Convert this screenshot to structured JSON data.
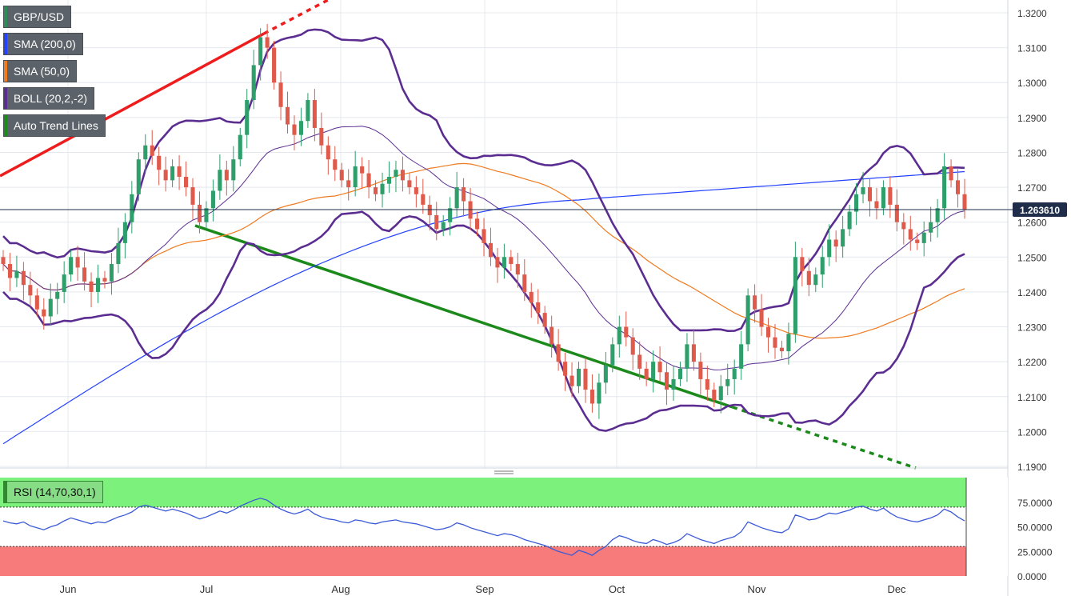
{
  "legends": [
    {
      "label": "GBP/USD",
      "color": "#2e8b57"
    },
    {
      "label": "SMA (200,0)",
      "color": "#2441ff"
    },
    {
      "label": "SMA (50,0)",
      "color": "#f07a1f"
    },
    {
      "label": "BOLL (20,2,-2)",
      "color": "#5c2d91"
    },
    {
      "label": "Auto Trend Lines",
      "color": "#1b8a1b"
    }
  ],
  "rsi_legend": "RSI (14,70,30,1)",
  "price_tag": "1.263610",
  "colors": {
    "bull": "#2e9e6a",
    "bear": "#e05a4b",
    "sma200": "#2441ff",
    "sma50": "#f07a1f",
    "boll": "#5c2d91",
    "trend_up": "#ee1c1c",
    "trend_down": "#1b8a1b",
    "rsi_line": "#3b5bd6",
    "rsi_over": "#7cf27c",
    "rsi_under": "#f77b7b"
  },
  "chart_data": {
    "type": "candlestick",
    "title": "GBP/USD",
    "x_labels": [
      "Jun",
      "Jul",
      "Aug",
      "Sep",
      "Oct",
      "Nov",
      "Dec"
    ],
    "y_ticks": [
      "1.3200",
      "1.3100",
      "1.3000",
      "1.2900",
      "1.2800",
      "1.2700",
      "1.2600",
      "1.2500",
      "1.2400",
      "1.2300",
      "1.2200",
      "1.2100",
      "1.2000",
      "1.1900"
    ],
    "ylim": [
      1.19,
      1.32
    ],
    "last_price": 1.26361,
    "candles_close": [
      1.248,
      1.244,
      1.246,
      1.242,
      1.239,
      1.235,
      1.233,
      1.238,
      1.24,
      1.245,
      1.25,
      1.247,
      1.243,
      1.24,
      1.244,
      1.243,
      1.248,
      1.254,
      1.26,
      1.268,
      1.278,
      1.282,
      1.279,
      1.275,
      1.272,
      1.276,
      1.273,
      1.27,
      1.265,
      1.26,
      1.264,
      1.269,
      1.275,
      1.272,
      1.278,
      1.285,
      1.295,
      1.305,
      1.313,
      1.31,
      1.3,
      1.293,
      1.288,
      1.285,
      1.289,
      1.295,
      1.287,
      1.282,
      1.278,
      1.275,
      1.272,
      1.27,
      1.276,
      1.274,
      1.27,
      1.268,
      1.271,
      1.273,
      1.275,
      1.272,
      1.27,
      1.268,
      1.265,
      1.262,
      1.258,
      1.26,
      1.264,
      1.27,
      1.266,
      1.261,
      1.258,
      1.254,
      1.25,
      1.247,
      1.25,
      1.248,
      1.245,
      1.24,
      1.237,
      1.234,
      1.23,
      1.225,
      1.22,
      1.216,
      1.213,
      1.218,
      1.212,
      1.208,
      1.214,
      1.219,
      1.225,
      1.23,
      1.227,
      1.222,
      1.218,
      1.215,
      1.22,
      1.217,
      1.212,
      1.215,
      1.218,
      1.225,
      1.22,
      1.215,
      1.212,
      1.209,
      1.213,
      1.215,
      1.218,
      1.225,
      1.239,
      1.235,
      1.23,
      1.227,
      1.224,
      1.223,
      1.228,
      1.25,
      1.246,
      1.242,
      1.245,
      1.25,
      1.255,
      1.253,
      1.258,
      1.263,
      1.268,
      1.27,
      1.266,
      1.264,
      1.27,
      1.265,
      1.26,
      1.258,
      1.255,
      1.254,
      1.257,
      1.26,
      1.264,
      1.276,
      1.272,
      1.268,
      1.2636
    ],
    "rsi": {
      "ylim": [
        0,
        100
      ],
      "overbought": 70,
      "oversold": 30,
      "ticks": [
        "75.0000",
        "50.0000",
        "25.0000",
        "0.0000"
      ],
      "values": [
        56,
        54,
        53,
        55,
        51,
        49,
        47,
        50,
        52,
        56,
        59,
        57,
        55,
        53,
        55,
        54,
        57,
        60,
        62,
        65,
        70,
        72,
        70,
        68,
        66,
        68,
        66,
        64,
        61,
        58,
        60,
        63,
        66,
        64,
        67,
        71,
        74,
        77,
        79,
        77,
        72,
        68,
        65,
        63,
        65,
        68,
        63,
        60,
        58,
        57,
        55,
        54,
        57,
        56,
        54,
        53,
        55,
        56,
        57,
        55,
        54,
        53,
        51,
        49,
        47,
        48,
        50,
        54,
        52,
        49,
        47,
        45,
        43,
        41,
        43,
        42,
        40,
        37,
        35,
        33,
        31,
        28,
        25,
        23,
        21,
        26,
        24,
        21,
        26,
        30,
        37,
        41,
        39,
        36,
        34,
        33,
        37,
        35,
        32,
        34,
        37,
        43,
        40,
        37,
        35,
        33,
        36,
        38,
        40,
        45,
        55,
        52,
        49,
        47,
        45,
        44,
        48,
        62,
        60,
        57,
        58,
        61,
        64,
        63,
        65,
        67,
        70,
        71,
        68,
        66,
        69,
        64,
        60,
        58,
        56,
        55,
        57,
        59,
        62,
        68,
        65,
        60,
        56
      ]
    }
  }
}
